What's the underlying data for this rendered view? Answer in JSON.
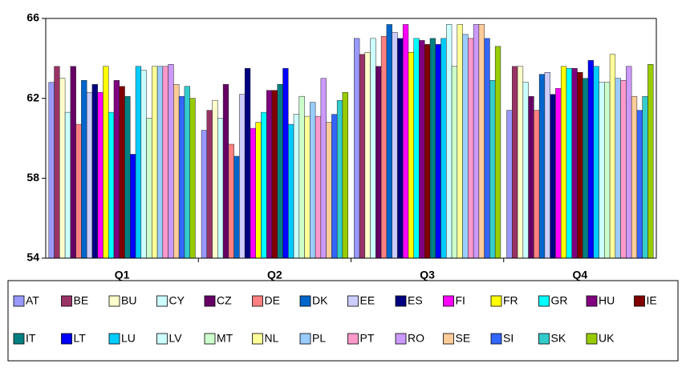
{
  "chart_data": {
    "type": "bar",
    "categories": [
      "Q1",
      "Q2",
      "Q3",
      "Q4"
    ],
    "ylim": [
      54,
      66
    ],
    "yticks": [
      54,
      58,
      62,
      66
    ],
    "grid": false,
    "series": [
      {
        "name": "AT",
        "color": "#9999FF",
        "values": [
          62.8,
          60.4,
          65.0,
          61.4
        ]
      },
      {
        "name": "BE",
        "color": "#993366",
        "values": [
          63.6,
          61.4,
          64.2,
          63.6
        ]
      },
      {
        "name": "BU",
        "color": "#FFFFCC",
        "values": [
          63.0,
          61.9,
          64.3,
          63.6
        ]
      },
      {
        "name": "CY",
        "color": "#CCFFFF",
        "values": [
          61.3,
          61.0,
          65.0,
          62.8
        ]
      },
      {
        "name": "CZ",
        "color": "#660066",
        "values": [
          63.6,
          62.7,
          63.6,
          62.1
        ]
      },
      {
        "name": "DE",
        "color": "#FF8080",
        "values": [
          60.7,
          59.7,
          65.1,
          61.4
        ]
      },
      {
        "name": "DK",
        "color": "#0066CC",
        "values": [
          62.9,
          59.1,
          65.7,
          63.2
        ]
      },
      {
        "name": "EE",
        "color": "#CCCCFF",
        "values": [
          62.3,
          62.2,
          65.3,
          63.3
        ]
      },
      {
        "name": "ES",
        "color": "#000080",
        "values": [
          62.7,
          63.5,
          65.0,
          62.2
        ]
      },
      {
        "name": "FI",
        "color": "#FF00FF",
        "values": [
          62.3,
          60.5,
          65.7,
          62.5
        ]
      },
      {
        "name": "FR",
        "color": "#FFFF00",
        "values": [
          63.6,
          60.8,
          64.3,
          63.6
        ]
      },
      {
        "name": "GR",
        "color": "#00FFFF",
        "values": [
          61.3,
          61.3,
          65.0,
          63.5
        ]
      },
      {
        "name": "HU",
        "color": "#800080",
        "values": [
          62.9,
          62.4,
          64.9,
          63.5
        ]
      },
      {
        "name": "IE",
        "color": "#800000",
        "values": [
          62.6,
          62.4,
          64.7,
          63.3
        ]
      },
      {
        "name": "IT",
        "color": "#008080",
        "values": [
          62.1,
          62.7,
          65.0,
          63.0
        ]
      },
      {
        "name": "LT",
        "color": "#0000FF",
        "values": [
          59.2,
          63.5,
          64.7,
          63.9
        ]
      },
      {
        "name": "LU",
        "color": "#00CCFF",
        "values": [
          63.6,
          60.7,
          65.0,
          63.6
        ]
      },
      {
        "name": "LV",
        "color": "#CCFFFF",
        "values": [
          63.4,
          61.2,
          65.7,
          62.8
        ]
      },
      {
        "name": "MT",
        "color": "#CCFFCC",
        "values": [
          61.0,
          62.1,
          63.6,
          62.8
        ]
      },
      {
        "name": "NL",
        "color": "#FFFF99",
        "values": [
          63.6,
          61.1,
          65.7,
          64.2
        ]
      },
      {
        "name": "PL",
        "color": "#99CCFF",
        "values": [
          63.6,
          61.8,
          65.2,
          63.0
        ]
      },
      {
        "name": "PT",
        "color": "#FF99CC",
        "values": [
          63.6,
          61.1,
          65.0,
          62.9
        ]
      },
      {
        "name": "RO",
        "color": "#CC99FF",
        "values": [
          63.7,
          63.0,
          65.7,
          63.6
        ]
      },
      {
        "name": "SE",
        "color": "#FFCC99",
        "values": [
          62.7,
          60.8,
          65.7,
          62.1
        ]
      },
      {
        "name": "SI",
        "color": "#3366FF",
        "values": [
          62.1,
          61.2,
          65.0,
          61.4
        ]
      },
      {
        "name": "SK",
        "color": "#33CCCC",
        "values": [
          62.6,
          61.9,
          62.9,
          62.1
        ]
      },
      {
        "name": "UK",
        "color": "#99CC00",
        "values": [
          62.0,
          62.3,
          64.6,
          63.7
        ]
      }
    ]
  }
}
